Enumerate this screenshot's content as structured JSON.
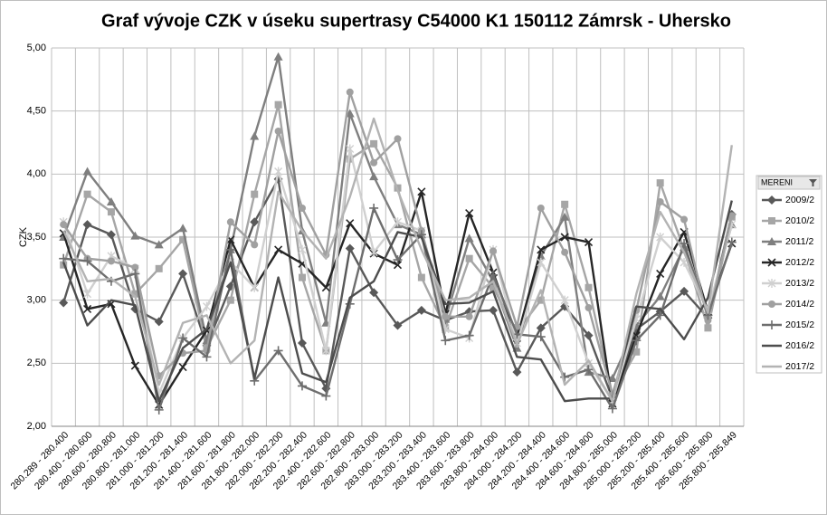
{
  "chart_data": {
    "type": "line",
    "title": "Graf vývoje CZK v úseku supertrasy C54000 K1 150112 Zámrsk - Uhersko",
    "y_label": "CZK",
    "legend_title": "MERENI",
    "categories": [
      "280.289 - 280.400",
      "280.400 - 280.600",
      "280.600 - 280.800",
      "280.800 - 281.000",
      "281.000 - 281.200",
      "281.200 - 281.400",
      "281.400 - 281.600",
      "281.600 - 281.800",
      "281.800 - 282.000",
      "282.000 - 282.200",
      "282.200 - 282.400",
      "282.400 - 282.600",
      "282.600 - 282.800",
      "282.800 - 283.000",
      "283.000 - 283.200",
      "283.200 - 283.400",
      "283.400 - 283.600",
      "283.600 - 283.800",
      "283.800 - 284.000",
      "284.000 - 284.200",
      "284.200 - 284.400",
      "284.400 - 284.600",
      "284.600 - 284.800",
      "284.800 - 285.000",
      "285.000 - 285.200",
      "285.200 - 285.400",
      "285.400 - 285.600",
      "285.600 - 285.800",
      "285.800 - 285.849"
    ],
    "ylim": [
      2,
      5
    ],
    "yticks": [
      {
        "value": 2,
        "label": "2,00"
      },
      {
        "value": 2.5,
        "label": "2,50"
      },
      {
        "value": 3,
        "label": "3,00"
      },
      {
        "value": 3.5,
        "label": "3,50"
      },
      {
        "value": 4,
        "label": "4,00"
      },
      {
        "value": 4.5,
        "label": "4,50"
      },
      {
        "value": 5,
        "label": "5,00"
      }
    ],
    "grid": true,
    "legend": "right",
    "series": [
      {
        "name": "2009/2",
        "color": "#595959",
        "marker": "diamond",
        "values": [
          2.98,
          3.6,
          3.52,
          2.93,
          2.83,
          3.21,
          2.64,
          3.11,
          3.62,
          3.96,
          2.66,
          2.3,
          3.41,
          3.06,
          2.8,
          2.92,
          2.84,
          2.91,
          2.92,
          2.43,
          2.78,
          2.95,
          2.72,
          2.22,
          2.77,
          2.91,
          3.07,
          2.86,
          3.68
        ]
      },
      {
        "name": "2010/2",
        "color": "#a6a6a6",
        "marker": "square",
        "values": [
          3.28,
          3.84,
          3.7,
          3.05,
          3.25,
          3.48,
          2.62,
          3.0,
          3.84,
          4.55,
          3.18,
          2.6,
          4.12,
          4.24,
          3.89,
          3.18,
          2.78,
          3.33,
          3.1,
          2.75,
          3.0,
          3.76,
          3.1,
          2.25,
          2.59,
          3.93,
          3.4,
          2.78,
          3.66
        ]
      },
      {
        "name": "2011/2",
        "color": "#7f7f7f",
        "marker": "triangle",
        "values": [
          3.5,
          4.02,
          3.78,
          3.51,
          3.44,
          3.57,
          2.68,
          3.4,
          4.3,
          4.93,
          3.55,
          2.82,
          4.48,
          3.98,
          3.6,
          3.52,
          2.85,
          3.49,
          3.15,
          2.62,
          3.35,
          3.66,
          2.43,
          2.38,
          2.8,
          3.03,
          3.42,
          2.91,
          3.6
        ]
      },
      {
        "name": "2012/2",
        "color": "#262626",
        "marker": "x",
        "values": [
          3.53,
          2.93,
          2.97,
          2.48,
          2.17,
          2.47,
          2.76,
          3.48,
          3.1,
          3.4,
          3.29,
          3.1,
          3.61,
          3.37,
          3.28,
          3.86,
          2.89,
          3.69,
          3.22,
          2.7,
          3.4,
          3.5,
          3.46,
          2.18,
          2.72,
          3.21,
          3.54,
          2.91,
          3.45
        ]
      },
      {
        "name": "2013/2",
        "color": "#d0d0d0",
        "marker": "asterisk",
        "values": [
          3.62,
          3.05,
          3.35,
          3.25,
          2.26,
          2.7,
          2.95,
          3.3,
          3.1,
          4.02,
          3.4,
          2.6,
          4.2,
          3.38,
          3.62,
          3.55,
          2.77,
          2.7,
          3.4,
          2.66,
          3.3,
          3.0,
          2.5,
          2.2,
          2.85,
          3.5,
          3.3,
          2.92,
          3.6
        ]
      },
      {
        "name": "2014/2",
        "color": "#a0a0a0",
        "marker": "circle",
        "values": [
          3.6,
          3.33,
          3.31,
          3.26,
          2.4,
          2.58,
          2.6,
          3.62,
          3.44,
          4.34,
          3.73,
          3.36,
          4.65,
          4.09,
          4.28,
          3.55,
          2.87,
          2.87,
          3.39,
          2.79,
          3.73,
          3.38,
          2.94,
          2.25,
          2.92,
          3.78,
          3.64,
          2.84,
          3.67
        ]
      },
      {
        "name": "2015/2",
        "color": "#6e6e6e",
        "marker": "plus",
        "values": [
          3.33,
          3.31,
          3.15,
          3.21,
          2.13,
          2.7,
          2.55,
          3.4,
          2.36,
          2.6,
          2.32,
          2.24,
          2.97,
          3.73,
          3.32,
          3.52,
          2.68,
          2.72,
          3.2,
          2.73,
          2.71,
          2.39,
          2.45,
          2.14,
          2.68,
          2.88,
          3.45,
          2.88,
          3.46
        ]
      },
      {
        "name": "2016/2",
        "color": "#4d4d4d",
        "marker": "none",
        "values": [
          3.3,
          2.8,
          3.0,
          2.96,
          2.2,
          2.62,
          2.77,
          3.3,
          2.38,
          3.18,
          2.42,
          2.35,
          3.02,
          3.15,
          3.54,
          3.5,
          2.97,
          2.98,
          3.07,
          2.55,
          2.53,
          2.2,
          2.22,
          2.22,
          2.95,
          2.93,
          2.69,
          3.02,
          3.79
        ]
      },
      {
        "name": "2017/2",
        "color": "#b3b3b3",
        "marker": "none",
        "values": [
          3.55,
          3.15,
          3.17,
          3.03,
          2.33,
          2.82,
          2.88,
          2.5,
          2.68,
          3.86,
          3.55,
          3.33,
          3.82,
          4.44,
          3.87,
          3.4,
          3.0,
          3.02,
          3.15,
          2.65,
          3.08,
          2.33,
          2.52,
          2.2,
          3.05,
          3.7,
          3.38,
          2.9,
          4.23
        ]
      }
    ]
  }
}
